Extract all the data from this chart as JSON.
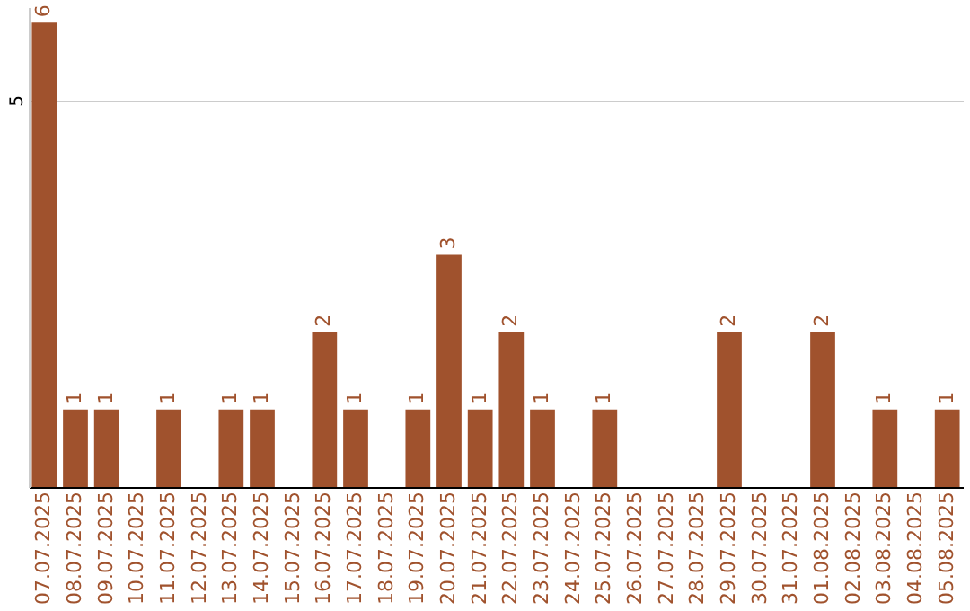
{
  "chart_data": {
    "type": "bar",
    "categories": [
      "07.07.2025",
      "08.07.2025",
      "09.07.2025",
      "10.07.2025",
      "11.07.2025",
      "12.07.2025",
      "13.07.2025",
      "14.07.2025",
      "15.07.2025",
      "16.07.2025",
      "17.07.2025",
      "18.07.2025",
      "19.07.2025",
      "20.07.2025",
      "21.07.2025",
      "22.07.2025",
      "23.07.2025",
      "24.07.2025",
      "25.07.2025",
      "26.07.2025",
      "27.07.2025",
      "28.07.2025",
      "29.07.2025",
      "30.07.2025",
      "31.07.2025",
      "01.08.2025",
      "02.08.2025",
      "03.08.2025",
      "04.08.2025",
      "05.08.2025"
    ],
    "values": [
      6,
      1,
      1,
      0,
      1,
      0,
      1,
      1,
      0,
      2,
      1,
      0,
      1,
      3,
      1,
      2,
      1,
      0,
      1,
      0,
      0,
      0,
      2,
      0,
      0,
      2,
      0,
      1,
      0,
      1
    ],
    "value_labels": [
      "6",
      "1",
      "1",
      null,
      "1",
      null,
      "1",
      "1",
      null,
      "2",
      "1",
      null,
      "1",
      "3",
      "1",
      "2",
      "1",
      null,
      "1",
      null,
      null,
      null,
      "2",
      null,
      null,
      "2",
      null,
      "1",
      null,
      "1"
    ],
    "color": "#a0522d",
    "ylim": [
      0,
      6.2
    ],
    "yticks": [
      5
    ],
    "grid": "y"
  }
}
